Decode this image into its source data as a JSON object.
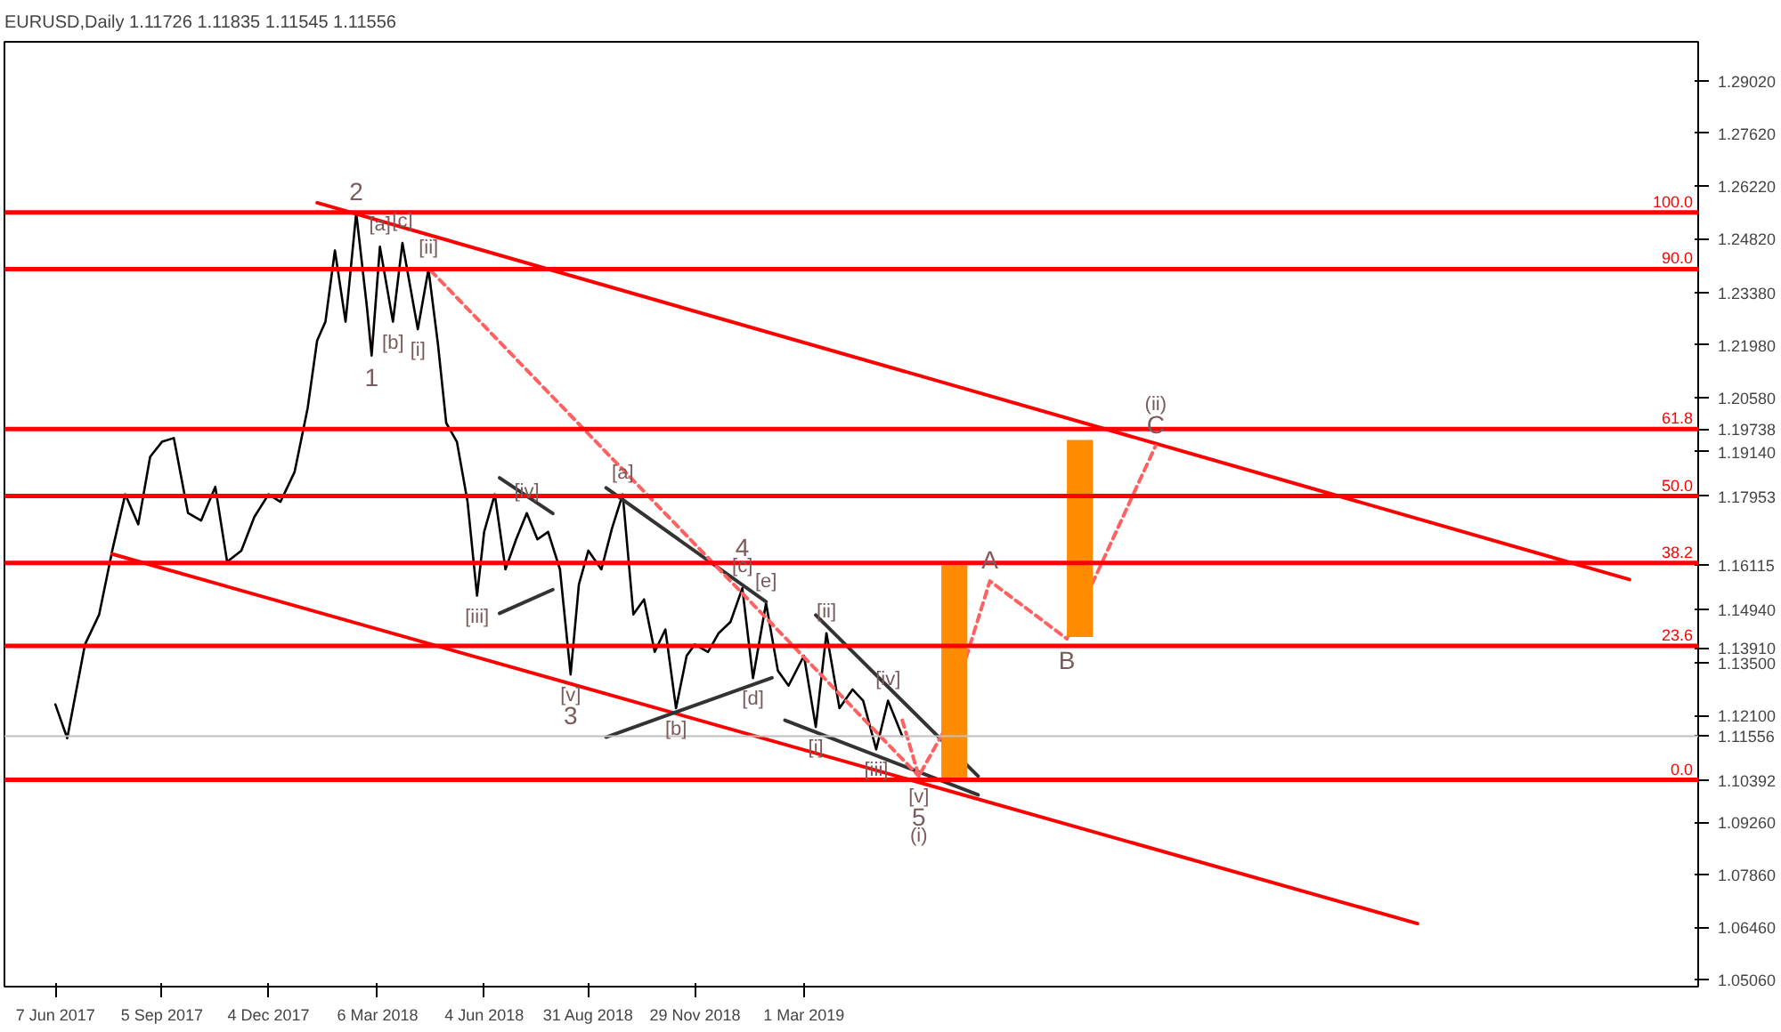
{
  "chart_data": {
    "type": "line",
    "title": "EURUSD,Daily  1.11726 1.11835 1.11545 1.11556",
    "xlim": [
      "2017-04-25",
      "2021-03-25"
    ],
    "ylim": [
      1.0488,
      1.3006
    ],
    "y2lim": [
      -36.45,
      130.05
    ],
    "xticks": [
      {
        "value": "2017-06-07",
        "label": "7 Jun 2017"
      },
      {
        "value": "2017-09-05",
        "label": "5 Sep 2017"
      },
      {
        "value": "2017-12-04",
        "label": "4 Dec 2017"
      },
      {
        "value": "2018-03-06",
        "label": "6 Mar 2018"
      },
      {
        "value": "2018-06-04",
        "label": "4 Jun 2018"
      },
      {
        "value": "2018-08-31",
        "label": "31 Aug 2018"
      },
      {
        "value": "2018-11-29",
        "label": "29 Nov 2018"
      },
      {
        "value": "2019-03-01",
        "label": "1 Mar 2019"
      }
    ],
    "yticks": [
      {
        "value": 1.2902,
        "label": "1.29020"
      },
      {
        "value": 1.2762,
        "label": "1.27620"
      },
      {
        "value": 1.2622,
        "label": "1.26220"
      },
      {
        "value": 1.2482,
        "label": "1.24820"
      },
      {
        "value": 1.2338,
        "label": "1.23380"
      },
      {
        "value": 1.2198,
        "label": "1.21980"
      },
      {
        "value": 1.2058,
        "label": "1.20580"
      },
      {
        "value": 1.19738,
        "label": "1.19738"
      },
      {
        "value": 1.1914,
        "label": "1.19140"
      },
      {
        "value": 1.17953,
        "label": "1.17953"
      },
      {
        "value": 1.16115,
        "label": "1.16115"
      },
      {
        "value": 1.1494,
        "label": "1.14940"
      },
      {
        "value": 1.1391,
        "label": "1.13910"
      },
      {
        "value": 1.135,
        "label": "1.13500"
      },
      {
        "value": 1.121,
        "label": "1.12100"
      },
      {
        "value": 1.11556,
        "label": "1.11556"
      },
      {
        "value": 1.10392,
        "label": "1.10392"
      },
      {
        "value": 1.0926,
        "label": "1.09260"
      },
      {
        "value": 1.0786,
        "label": "1.07860"
      },
      {
        "value": 1.0646,
        "label": "1.06460"
      },
      {
        "value": 1.0506,
        "label": "1.05060"
      }
    ],
    "grid": false,
    "ref_lines": [
      {
        "axis": "y2",
        "value": 100.0,
        "label": "100.0",
        "color": "#ff0000"
      },
      {
        "axis": "y2",
        "value": 90.0,
        "label": "90.0",
        "color": "#ff0000"
      },
      {
        "axis": "y2",
        "value": 61.8,
        "label": "61.8",
        "color": "#ff0000"
      },
      {
        "axis": "y2",
        "value": 50.0,
        "label": "50.0",
        "color": "#ff0000"
      },
      {
        "axis": "y2",
        "value": 38.2,
        "label": "38.2",
        "color": "#ff0000"
      },
      {
        "axis": "y2",
        "value": 23.6,
        "label": "23.6",
        "color": "#ff0000"
      },
      {
        "axis": "y2",
        "value": 0.0,
        "label": "0.0",
        "color": "#ff0000"
      },
      {
        "axis": "y",
        "value": 1.11556,
        "label": null,
        "color": "#c0c0c0"
      }
    ],
    "series": [
      {
        "color": "#000000",
        "x": [
          "2017-06-07",
          "2017-06-17",
          "2017-07-02",
          "2017-07-14",
          "2017-07-25",
          "2017-08-05",
          "2017-08-16",
          "2017-08-26",
          "2017-09-05",
          "2017-09-15",
          "2017-09-27",
          "2017-10-08",
          "2017-10-20",
          "2017-10-30",
          "2017-11-11",
          "2017-11-22",
          "2017-12-04",
          "2017-12-14",
          "2017-12-26",
          "2018-01-06",
          "2018-01-14",
          "2018-01-21",
          "2018-01-29",
          "2018-02-07",
          "2018-02-16",
          "2018-02-25",
          "2018-03-01",
          "2018-03-08",
          "2018-03-19",
          "2018-03-27",
          "2018-04-09",
          "2018-04-18",
          "2018-04-26",
          "2018-05-03",
          "2018-05-12",
          "2018-05-21",
          "2018-05-29",
          "2018-06-04",
          "2018-06-13",
          "2018-06-22",
          "2018-07-01",
          "2018-07-10",
          "2018-07-19",
          "2018-07-28",
          "2018-08-07",
          "2018-08-16",
          "2018-08-23",
          "2018-08-31",
          "2018-09-11",
          "2018-09-20",
          "2018-09-29",
          "2018-10-08",
          "2018-10-17",
          "2018-10-26",
          "2018-11-04",
          "2018-11-13",
          "2018-11-22",
          "2018-11-29",
          "2018-12-10",
          "2018-12-19",
          "2018-12-29",
          "2019-01-08",
          "2019-01-17",
          "2019-01-28",
          "2019-02-07",
          "2019-02-16",
          "2019-03-01",
          "2019-03-11",
          "2019-03-20",
          "2019-03-31",
          "2019-04-11",
          "2019-04-20",
          "2019-05-01",
          "2019-05-11",
          "2019-05-23"
        ],
        "values": [
          1.124,
          1.115,
          1.14,
          1.148,
          1.165,
          1.18,
          1.172,
          1.19,
          1.194,
          1.195,
          1.175,
          1.173,
          1.182,
          1.162,
          1.165,
          1.174,
          1.18,
          1.178,
          1.186,
          1.203,
          1.221,
          1.226,
          1.245,
          1.226,
          1.255,
          1.23,
          1.217,
          1.246,
          1.226,
          1.247,
          1.224,
          1.24,
          1.22,
          1.199,
          1.194,
          1.178,
          1.153,
          1.17,
          1.18,
          1.16,
          1.168,
          1.175,
          1.168,
          1.17,
          1.16,
          1.132,
          1.156,
          1.165,
          1.16,
          1.171,
          1.18,
          1.148,
          1.152,
          1.138,
          1.144,
          1.123,
          1.137,
          1.14,
          1.138,
          1.143,
          1.146,
          1.155,
          1.131,
          1.151,
          1.133,
          1.129,
          1.137,
          1.118,
          1.143,
          1.123,
          1.128,
          1.125,
          1.112,
          1.125,
          1.1156
        ]
      },
      {
        "color": "#ff0000",
        "x": [
          "2018-01-14",
          "2021-01-26"
        ],
        "values": [
          1.2577,
          1.1573
        ]
      },
      {
        "color": "#ff0000",
        "x": [
          "2017-07-25",
          "2020-07-31"
        ],
        "values": [
          1.1641,
          1.0656
        ]
      },
      {
        "color": "#333333",
        "x": [
          "2018-06-17",
          "2018-08-01"
        ],
        "values": [
          1.1844,
          1.1749
        ]
      },
      {
        "color": "#333333",
        "x": [
          "2018-06-17",
          "2018-08-01"
        ],
        "values": [
          1.1483,
          1.1546
        ]
      },
      {
        "color": "#333333",
        "x": [
          "2018-09-15",
          "2019-01-28"
        ],
        "values": [
          1.1817,
          1.1514
        ]
      },
      {
        "color": "#333333",
        "x": [
          "2018-09-15",
          "2019-02-02"
        ],
        "values": [
          1.1153,
          1.1311
        ]
      },
      {
        "color": "#333333",
        "x": [
          "2019-03-11",
          "2019-07-26"
        ],
        "values": [
          1.1478,
          1.1049
        ]
      },
      {
        "color": "#333333",
        "x": [
          "2019-02-13",
          "2019-07-26"
        ],
        "values": [
          1.1198,
          1.0999
        ]
      },
      {
        "color": "#ff6060",
        "line_style": "dashed",
        "x": [
          "2018-04-20",
          "2019-06-06"
        ],
        "values": [
          1.2396,
          1.1049
        ]
      },
      {
        "color": "#ff6060",
        "line_style": "dashed",
        "x": [
          "2019-05-23",
          "2019-06-06",
          "2019-06-26",
          "2019-08-05",
          "2019-10-09",
          "2019-12-23"
        ],
        "values": [
          1.1198,
          1.1049,
          1.1162,
          1.1569,
          1.1415,
          1.193
        ]
      },
      {
        "type": "bar",
        "color": "#ff8c00",
        "x": [
          "2019-07-06",
          "2019-10-20"
        ],
        "base": [
          1.10392,
          1.142
        ],
        "values": [
          0.0572,
          0.0525
        ]
      }
    ],
    "annotations": [
      {
        "text": "2",
        "x": "2018-02-16",
        "y": 1.255
      },
      {
        "text": "[a]",
        "x": "2018-03-08",
        "y": 1.246
      },
      {
        "text": "[c]",
        "x": "2018-03-27",
        "y": 1.247
      },
      {
        "text": "[ii]",
        "x": "2018-04-18",
        "y": 1.24
      },
      {
        "text": "[b]",
        "x": "2018-03-19",
        "y": 1.226
      },
      {
        "text": "[i]",
        "x": "2018-04-09",
        "y": 1.224
      },
      {
        "text": "1",
        "x": "2018-03-01",
        "y": 1.217
      },
      {
        "text": "[iv]",
        "x": "2018-07-10",
        "y": 1.175
      },
      {
        "text": "[a]",
        "x": "2018-09-29",
        "y": 1.18
      },
      {
        "text": "[iii]",
        "x": "2018-05-29",
        "y": 1.153
      },
      {
        "text": "[v]",
        "x": "2018-08-16",
        "y": 1.132
      },
      {
        "text": "3",
        "x": "2018-08-16",
        "y": 1.132
      },
      {
        "text": "[b]",
        "x": "2018-11-13",
        "y": 1.123
      },
      {
        "text": "[c]",
        "x": "2019-01-08",
        "y": 1.155
      },
      {
        "text": "4",
        "x": "2019-01-08",
        "y": 1.155
      },
      {
        "text": "[e]",
        "x": "2019-01-28",
        "y": 1.151
      },
      {
        "text": "[d]",
        "x": "2019-01-17",
        "y": 1.131
      },
      {
        "text": "[ii]",
        "x": "2019-03-20",
        "y": 1.143
      },
      {
        "text": "[i]",
        "x": "2019-03-11",
        "y": 1.118
      },
      {
        "text": "[iv]",
        "x": "2019-05-11",
        "y": 1.125
      },
      {
        "text": "[iii]",
        "x": "2019-05-01",
        "y": 1.112
      },
      {
        "text": "[v]",
        "x": "2019-06-06",
        "y": 1.1049
      },
      {
        "text": "5",
        "x": "2019-06-06",
        "y": 1.1049
      },
      {
        "text": "(i)",
        "x": "2019-06-06",
        "y": 1.1049
      },
      {
        "text": "A",
        "x": "2019-08-05",
        "y": 1.1569
      },
      {
        "text": "B",
        "x": "2019-10-09",
        "y": 1.1415
      },
      {
        "text": "C",
        "x": "2019-12-23",
        "y": 1.193
      },
      {
        "text": "(ii)",
        "x": "2019-12-23",
        "y": 1.193
      }
    ]
  }
}
